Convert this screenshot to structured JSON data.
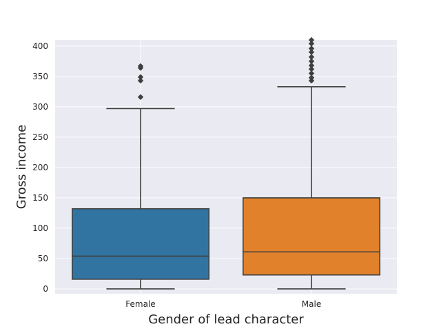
{
  "chart_data": {
    "type": "box",
    "xlabel": "Gender of lead character",
    "ylabel": "Gross income",
    "ylim": [
      -8,
      410
    ],
    "yticks": [
      0,
      50,
      100,
      150,
      200,
      250,
      300,
      350,
      400
    ],
    "grid": true,
    "background": "#eaeaf2",
    "categories": [
      "Female",
      "Male"
    ],
    "boxes": [
      {
        "category": "Female",
        "color": "#3274a1",
        "whisker_low": 0,
        "q1": 16,
        "median": 54,
        "q3": 132,
        "whisker_high": 297,
        "outliers": [
          316,
          343,
          349,
          364,
          367
        ]
      },
      {
        "category": "Male",
        "color": "#e1812c",
        "whisker_low": 0,
        "q1": 23,
        "median": 61,
        "q3": 150,
        "whisker_high": 333,
        "outliers": [
          343,
          348,
          355,
          362,
          368,
          375,
          382,
          390,
          396,
          404,
          410
        ]
      }
    ]
  }
}
